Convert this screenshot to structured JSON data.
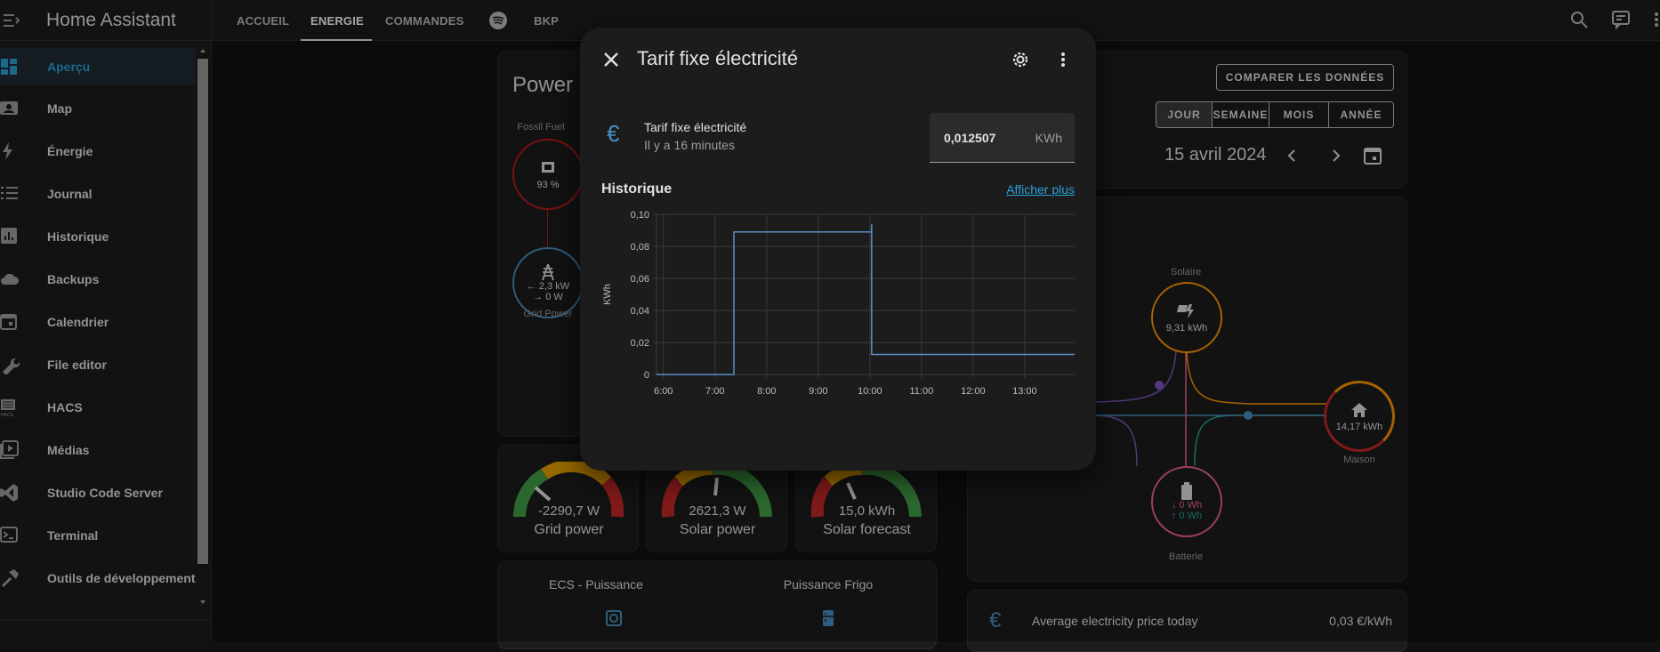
{
  "sidebar": {
    "title": "Home Assistant",
    "items": [
      {
        "label": "Aperçu",
        "icon": "dashboard-icon",
        "active": true
      },
      {
        "label": "Map",
        "icon": "map-icon"
      },
      {
        "label": "Énergie",
        "icon": "lightning-icon"
      },
      {
        "label": "Journal",
        "icon": "list-icon"
      },
      {
        "label": "Historique",
        "icon": "chart-icon"
      },
      {
        "label": "Backups",
        "icon": "cloud-icon"
      },
      {
        "label": "Calendrier",
        "icon": "calendar-icon"
      },
      {
        "label": "File editor",
        "icon": "wrench-icon"
      },
      {
        "label": "HACS",
        "icon": "hacs-icon"
      },
      {
        "label": "Médias",
        "icon": "play-icon"
      },
      {
        "label": "Studio Code Server",
        "icon": "vscode-icon"
      },
      {
        "label": "Terminal",
        "icon": "terminal-icon"
      },
      {
        "label": "Outils de développement",
        "icon": "hammer-icon"
      }
    ]
  },
  "topbar": {
    "tabs": [
      "ACCUEIL",
      "ENERGIE",
      "COMMANDES",
      "BKP"
    ],
    "active_tab": "ENERGIE"
  },
  "power_card": {
    "title": "Power F",
    "fossil_label": "Fossil Fuel",
    "fossil_value": "93 %",
    "grid_in": "← 2,3 kW",
    "grid_out": "→ 0 W",
    "grid_label": "Grid Power"
  },
  "gauges": [
    {
      "value": "-2290,7 W",
      "name": "Grid power"
    },
    {
      "value": "2621,3 W",
      "name": "Solar power"
    },
    {
      "value": "15,0 kWh",
      "name": "Solar forecast"
    }
  ],
  "bottom_card": {
    "left": "ECS - Puissance",
    "right": "Puissance Frigo"
  },
  "date_card": {
    "compare_button": "COMPARER LES DONNÉES",
    "periods": [
      "JOUR",
      "SEMAINE",
      "MOIS",
      "ANNÉE"
    ],
    "active_period": "JOUR",
    "date": "15 avril 2024"
  },
  "energy_flow": {
    "solar_label": "Solaire",
    "solar_value": "9,31 kWh",
    "home_label": "Maison",
    "home_value": "14,17 kWh",
    "battery_label": "Batterie",
    "battery_in": "↓ 0 Wh",
    "battery_out": "↑ 0 Wh"
  },
  "price_card": {
    "label": "Average electricity price today",
    "value": "0,03 €/kWh"
  },
  "dialog": {
    "title": "Tarif fixe électricité",
    "entity_name": "Tarif fixe électricité",
    "updated": "Il y a 16 minutes",
    "value": "0,012507",
    "unit": "KWh",
    "history_title": "Historique",
    "show_more": "Afficher plus"
  },
  "chart_data": {
    "type": "line",
    "title": "",
    "xlabel": "",
    "ylabel": "KWh",
    "x_ticks": [
      "6:00",
      "7:00",
      "8:00",
      "9:00",
      "10:00",
      "11:00",
      "12:00",
      "13:00"
    ],
    "y_ticks": [
      "0",
      "0,02",
      "0,04",
      "0,06",
      "0,08",
      "0,10"
    ],
    "ylim": [
      0,
      0.1
    ],
    "xlim": [
      "5:52",
      "13:58"
    ],
    "series": [
      {
        "color": "#5c8fc5",
        "step": true,
        "points": [
          [
            "5:52",
            0
          ],
          [
            "7:22",
            0
          ],
          [
            "7:22",
            0.089
          ],
          [
            "10:02",
            0.089
          ],
          [
            "10:02",
            0.094
          ],
          [
            "10:02",
            0.0125
          ],
          [
            "13:58",
            0.0125
          ]
        ]
      }
    ],
    "grid": true
  },
  "colors": {
    "accent": "#2aa3d8",
    "grid_blue": "#488fc2",
    "solar": "#ff9800",
    "fossil": "#b71c1c",
    "battery": "#f06292",
    "home_ring": "#c62828"
  }
}
